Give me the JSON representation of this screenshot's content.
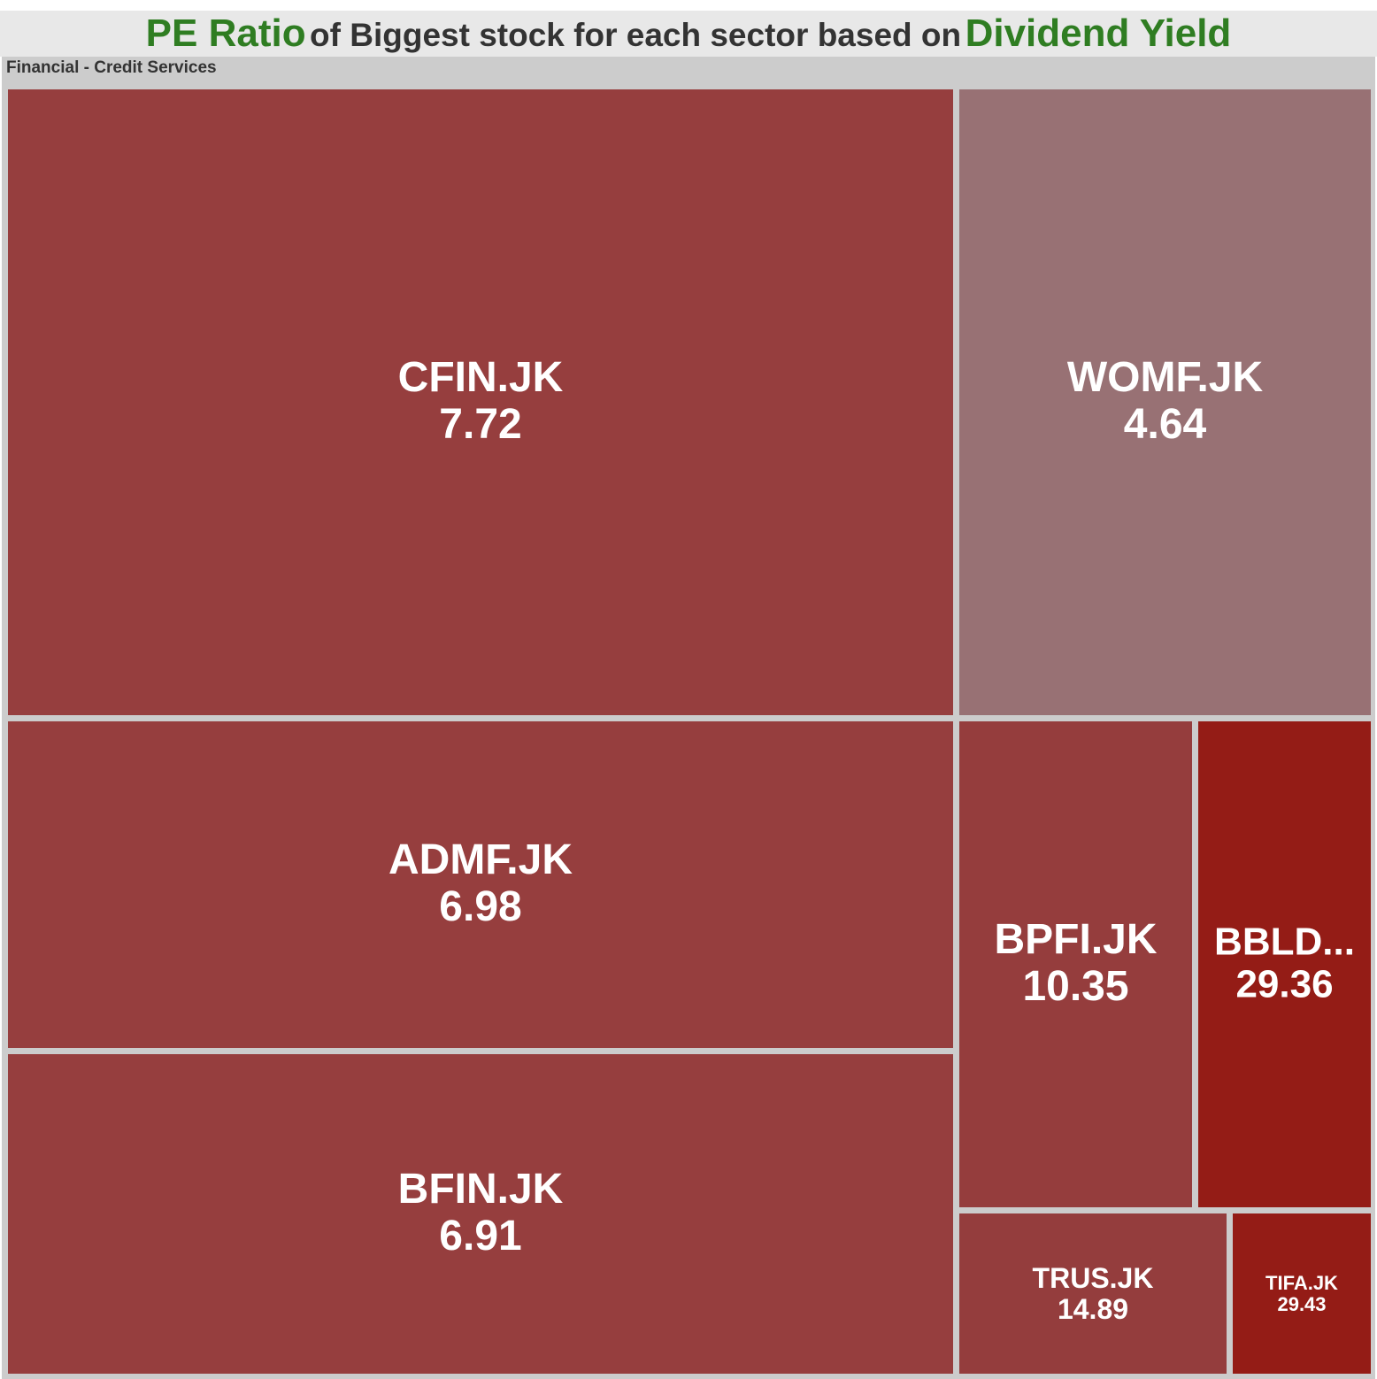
{
  "title": {
    "part1": "PE Ratio",
    "part2": "of Biggest stock for each sector based on",
    "part3": "Dividend Yield"
  },
  "sector": "Financial - Credit Services",
  "colors": {
    "highlight": "#2f7d22",
    "text_dark": "#333333",
    "panel": "#cccccc",
    "tile_label": "#ffffff"
  },
  "chart_data": {
    "type": "treemap",
    "title": "PE Ratio of Biggest stock for each sector based on Dividend Yield",
    "group": "Financial - Credit Services",
    "size_metric": "Dividend Yield",
    "value_metric": "PE Ratio",
    "items": [
      {
        "label": "CFIN.JK",
        "display_label": "CFIN.JK",
        "pe_ratio": "7.72",
        "color": "#963e3e"
      },
      {
        "label": "WOMF.JK",
        "display_label": "WOMF.JK",
        "pe_ratio": "4.64",
        "color": "#987174"
      },
      {
        "label": "ADMF.JK",
        "display_label": "ADMF.JK",
        "pe_ratio": "6.98",
        "color": "#963e3e"
      },
      {
        "label": "BFIN.JK",
        "display_label": "BFIN.JK",
        "pe_ratio": "6.91",
        "color": "#963e3e"
      },
      {
        "label": "BPFI.JK",
        "display_label": "BPFI.JK",
        "pe_ratio": "10.35",
        "color": "#953d3d"
      },
      {
        "label": "BBLD.JK",
        "display_label": "BBLD...",
        "pe_ratio": "29.36",
        "color": "#941c16"
      },
      {
        "label": "TRUS.JK",
        "display_label": "TRUS.JK",
        "pe_ratio": "14.89",
        "color": "#943d3d"
      },
      {
        "label": "TIFA.JK",
        "display_label": "TIFA.JK",
        "pe_ratio": "29.43",
        "color": "#941c16"
      }
    ]
  }
}
